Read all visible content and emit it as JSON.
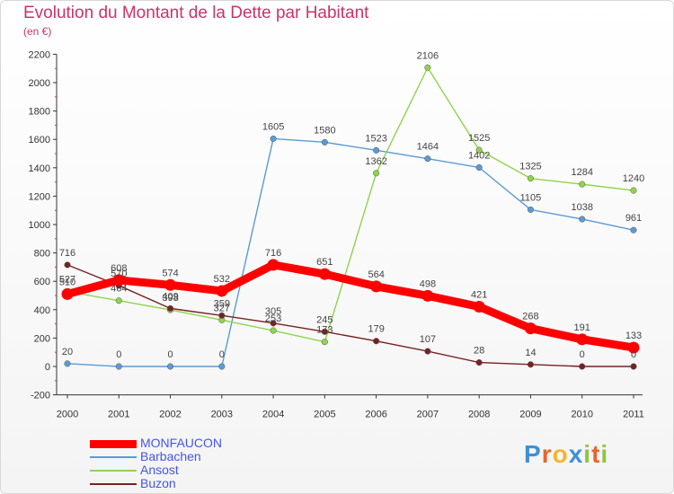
{
  "header": {
    "title": "Evolution du Montant de la Dette par Habitant",
    "subtitle": "(en €)"
  },
  "logo": {
    "text": "Proxiti",
    "letters": [
      {
        "ch": "P",
        "color": "#3f8fd6"
      },
      {
        "ch": "r",
        "color": "#e8642c"
      },
      {
        "ch": "o",
        "color": "#f2b531"
      },
      {
        "ch": "x",
        "color": "#3f8fd6"
      },
      {
        "ch": "i",
        "color": "#8cc63f"
      },
      {
        "ch": "t",
        "color": "#e8642c"
      },
      {
        "ch": "i",
        "color": "#8cc63f"
      }
    ]
  },
  "chart_data": {
    "type": "line",
    "title": "Evolution du Montant de la Dette par Habitant",
    "subtitle": "(en €)",
    "xlabel": "",
    "ylabel": "",
    "x": [
      "2000",
      "2001",
      "2002",
      "2003",
      "2004",
      "2005",
      "2006",
      "2007",
      "2008",
      "2009",
      "2010",
      "2011"
    ],
    "ylim": [
      -200,
      2200
    ],
    "yticks": [
      "-200",
      "0",
      "200",
      "400",
      "600",
      "800",
      "1000",
      "1200",
      "1400",
      "1600",
      "1800",
      "2000",
      "2200"
    ],
    "grid": false,
    "legend_position": "bottom-left",
    "series": [
      {
        "name": "MONFAUCON",
        "color": "#ff0000",
        "emphasis": true,
        "values": [
          510,
          608,
          574,
          532,
          716,
          651,
          564,
          498,
          421,
          268,
          191,
          133
        ],
        "labels": [
          "510",
          "608",
          "574",
          "532",
          "716",
          "651",
          "564",
          "498",
          "421",
          "268",
          "191",
          "133"
        ]
      },
      {
        "name": "Barbachen",
        "color": "#5b9bd5",
        "values": [
          20,
          0,
          0,
          0,
          1605,
          1580,
          1523,
          1464,
          1402,
          1105,
          1038,
          961
        ],
        "labels": [
          "20",
          "0",
          "0",
          "0",
          "1605",
          "1580",
          "1523",
          "1464",
          "1402",
          "1105",
          "1038",
          "961"
        ]
      },
      {
        "name": "Ansost",
        "color": "#8fd44b",
        "values": [
          527,
          464,
          398,
          327,
          253,
          173,
          1362,
          2106,
          1525,
          1325,
          1284,
          1240
        ],
        "labels": [
          "527",
          "464",
          "398",
          "327",
          "253",
          "173",
          "1362",
          "2106",
          "1525",
          "1325",
          "1284",
          "1240"
        ]
      },
      {
        "name": "Buzon",
        "color": "#772222",
        "values": [
          716,
          570,
          409,
          359,
          305,
          245,
          179,
          107,
          28,
          14,
          0,
          0
        ],
        "labels": [
          "716",
          "570",
          "409",
          "359",
          "305",
          "245",
          "179",
          "107",
          "28",
          "14",
          "0",
          "0"
        ]
      }
    ]
  }
}
